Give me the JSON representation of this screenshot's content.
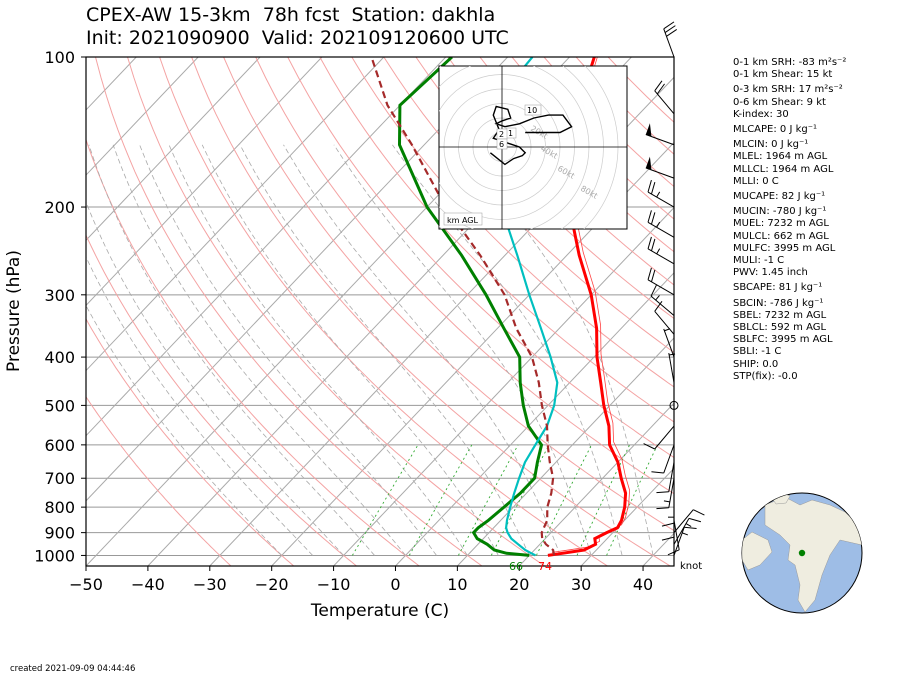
{
  "header": {
    "title_line1": "CPEX-AW 15-3km  78h fcst  Station: dakhla",
    "title_line2": "Init: 2021090900  Valid: 202109120600 UTC"
  },
  "chart_data": {
    "type": "line",
    "xlabel": "Temperature (C)",
    "ylabel": "Pressure (hPa)",
    "xlim": [
      -50,
      45
    ],
    "ylim": [
      1050,
      100
    ],
    "y_scale": "log",
    "x_ticks": [
      "−50",
      "−40",
      "−30",
      "−20",
      "−10",
      "0",
      "10",
      "20",
      "30",
      "40"
    ],
    "x_tick_values": [
      -50,
      -40,
      -30,
      -20,
      -10,
      0,
      10,
      20,
      30,
      40
    ],
    "y_ticks": [
      "100",
      "200",
      "300",
      "400",
      "500",
      "600",
      "700",
      "800",
      "900",
      "1000"
    ],
    "y_tick_values": [
      100,
      200,
      300,
      400,
      500,
      600,
      700,
      800,
      900,
      1000
    ],
    "skew": "skew-T log-p",
    "series": [
      {
        "color": "#ff0000",
        "p": [
          1000,
          990,
          975,
          950,
          925,
          900,
          880,
          850,
          800,
          750,
          700,
          650,
          600,
          550,
          500,
          450,
          400,
          350,
          300,
          250,
          200,
          150,
          125,
          100
        ],
        "t": [
          23,
          25,
          28,
          29,
          28,
          29,
          30,
          29.5,
          28,
          26,
          23,
          20,
          16,
          13,
          9,
          5,
          0.5,
          -4,
          -10,
          -18,
          -27,
          -36,
          -41,
          -46
        ]
      },
      {
        "color": "#008000",
        "p": [
          1000,
          990,
          975,
          950,
          925,
          900,
          880,
          850,
          800,
          750,
          700,
          650,
          600,
          550,
          500,
          450,
          400,
          350,
          300,
          250,
          200,
          150,
          125,
          100
        ],
        "t": [
          20,
          16,
          13.5,
          11.5,
          9,
          7.5,
          7.5,
          8,
          8.5,
          9,
          9,
          7,
          5,
          0,
          -4,
          -8,
          -12,
          -19,
          -27,
          -37,
          -50,
          -64,
          -70,
          -69
        ]
      },
      {
        "color": "#00bfbf",
        "p": [
          1000,
          990,
          975,
          950,
          925,
          900,
          880,
          850,
          800,
          750,
          700,
          650,
          600,
          550,
          500,
          450,
          400,
          350,
          300,
          250,
          200,
          150,
          125,
          100
        ],
        "t": [
          21,
          20,
          18.5,
          16.5,
          14.5,
          13,
          12,
          11,
          9.5,
          8,
          6.5,
          5,
          4,
          3,
          1,
          -2,
          -7,
          -13,
          -20,
          -28,
          -38,
          -50,
          -55,
          -56
        ]
      },
      {
        "color": "#a52a2a",
        "dashed": true,
        "p": [
          1000,
          975,
          950,
          925,
          900,
          850,
          800,
          750,
          700,
          650,
          600,
          550,
          500,
          450,
          400,
          350,
          300,
          250,
          200,
          150,
          125,
          100
        ],
        "t": [
          24,
          23,
          21,
          19.5,
          18.5,
          17.5,
          15.5,
          14,
          12,
          9,
          6,
          3,
          -1,
          -5,
          -10,
          -17,
          -24,
          -34,
          -47,
          -62,
          -72,
          -82
        ]
      }
    ],
    "surface_labels": {
      "dewpoint": "66",
      "temperature": "74"
    },
    "knot_label": "knot",
    "wind_barbs": [
      {
        "p": 100,
        "dir": 340,
        "kt": 30
      },
      {
        "p": 130,
        "dir": 320,
        "kt": 20
      },
      {
        "p": 150,
        "dir": 290,
        "kt": 50
      },
      {
        "p": 175,
        "dir": 290,
        "kt": 50
      },
      {
        "p": 200,
        "dir": 300,
        "kt": 25
      },
      {
        "p": 230,
        "dir": 300,
        "kt": 25
      },
      {
        "p": 260,
        "dir": 300,
        "kt": 25
      },
      {
        "p": 300,
        "dir": 300,
        "kt": 20
      },
      {
        "p": 330,
        "dir": 310,
        "kt": 15
      },
      {
        "p": 360,
        "dir": 320,
        "kt": 10
      },
      {
        "p": 400,
        "dir": 340,
        "kt": 5
      },
      {
        "p": 450,
        "dir": 350,
        "kt": 5
      },
      {
        "p": 500,
        "dir": 0,
        "kt": 0
      },
      {
        "p": 550,
        "dir": 220,
        "kt": 10
      },
      {
        "p": 600,
        "dir": 200,
        "kt": 10
      },
      {
        "p": 650,
        "dir": 190,
        "kt": 10
      },
      {
        "p": 700,
        "dir": 190,
        "kt": 15
      },
      {
        "p": 750,
        "dir": 180,
        "kt": 15
      },
      {
        "p": 800,
        "dir": 180,
        "kt": 10
      },
      {
        "p": 850,
        "dir": 170,
        "kt": 10
      },
      {
        "p": 900,
        "dir": 40,
        "kt": 10
      },
      {
        "p": 950,
        "dir": 30,
        "kt": 15
      },
      {
        "p": 1000,
        "dir": 20,
        "kt": 15
      }
    ],
    "hodograph": {
      "ring_labels": [
        "20kt",
        "40kt",
        "60kt",
        "80kt"
      ],
      "height_labels": [
        "10",
        "1",
        "2",
        "6"
      ],
      "units_label": "km AGL",
      "u": [
        3,
        1,
        -2,
        2,
        5,
        1,
        -3,
        -3,
        0,
        3,
        8,
        12,
        15,
        18,
        20,
        16,
        10,
        4
      ],
      "v": [
        -3,
        -6,
        -2,
        3,
        1,
        -1,
        -2,
        3,
        5,
        8,
        10,
        11,
        10,
        9,
        5,
        4,
        5,
        7
      ]
    }
  },
  "params": [
    "0-1 km SRH: -83 m²s⁻²",
    "0-1 km Shear: 15 kt",
    "0-3 km SRH: 17 m²s⁻²",
    "0-6 km Shear: 9 kt",
    "K-index: 30",
    "MLCAPE: 0 J kg⁻¹",
    "MLCIN: 0 J kg⁻¹",
    "MLEL: 1964 m AGL",
    "MLLCL: 1964 m AGL",
    "MLLI: 0 C",
    "MUCAPE: 82 J kg⁻¹",
    "MUCIN: -780 J kg⁻¹",
    "MUEL: 7232 m AGL",
    "MULCL: 662 m AGL",
    "MULFC: 3995 m AGL",
    "MULI: -1 C",
    "PWV: 1.45 inch",
    "SBCAPE: 81 J kg⁻¹",
    "SBCIN: -786 J kg⁻¹",
    "SBEL: 7232 m AGL",
    "SBLCL: 592 m AGL",
    "SBLFC: 3995 m AGL",
    "SBLI: -1 C",
    "SHIP: 0.0",
    "STP(fix): -0.0"
  ],
  "footer": {
    "created": "created 2021-09-09 04:44:46"
  },
  "globe": {
    "ocean_color": "#9ebde6",
    "land_color": "#efede0",
    "station_color": "#008000"
  }
}
